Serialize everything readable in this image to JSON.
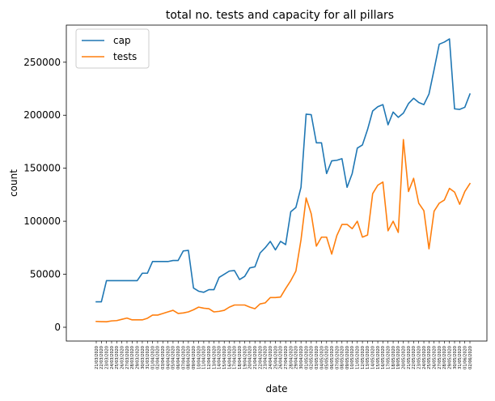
{
  "chart_data": {
    "type": "line",
    "title": "total no. tests and capacity for all pillars",
    "xlabel": "date",
    "ylabel": "count",
    "ylim": [
      -13000,
      285000
    ],
    "yticks": [
      0,
      50000,
      100000,
      150000,
      200000,
      250000
    ],
    "grid": false,
    "legend_position": "top-left",
    "colors": {
      "cap": "#1f77b4",
      "tests": "#ff7f0e"
    },
    "x": [
      "21/03/2020",
      "22/03/2020",
      "23/03/2020",
      "24/03/2020",
      "25/03/2020",
      "26/03/2020",
      "27/03/2020",
      "28/03/2020",
      "29/03/2020",
      "30/03/2020",
      "31/03/2020",
      "01/04/2020",
      "02/04/2020",
      "03/04/2020",
      "04/04/2020",
      "05/04/2020",
      "06/04/2020",
      "07/04/2020",
      "08/04/2020",
      "09/04/2020",
      "10/04/2020",
      "11/04/2020",
      "12/04/2020",
      "13/04/2020",
      "14/04/2020",
      "15/04/2020",
      "16/04/2020",
      "17/04/2020",
      "18/04/2020",
      "19/04/2020",
      "20/04/2020",
      "21/04/2020",
      "22/04/2020",
      "23/04/2020",
      "24/04/2020",
      "25/04/2020",
      "26/04/2020",
      "27/04/2020",
      "28/04/2020",
      "29/04/2020",
      "30/04/2020",
      "01/05/2020",
      "02/05/2020",
      "03/05/2020",
      "04/05/2020",
      "05/05/2020",
      "06/05/2020",
      "07/05/2020",
      "08/05/2020",
      "09/05/2020",
      "10/05/2020",
      "11/05/2020",
      "12/05/2020",
      "13/05/2020",
      "14/05/2020",
      "15/05/2020",
      "16/05/2020",
      "17/05/2020",
      "18/05/2020",
      "19/05/2020",
      "20/05/2020",
      "21/05/2020",
      "22/05/2020",
      "23/05/2020",
      "24/05/2020",
      "25/05/2020",
      "26/05/2020",
      "27/05/2020",
      "28/05/2020",
      "29/05/2020",
      "30/05/2020",
      "31/05/2020",
      "01/06/2020",
      "02/06/2020"
    ],
    "series": [
      {
        "name": "cap",
        "values": [
          24000,
          24000,
          44000,
          44000,
          44000,
          44000,
          44000,
          44000,
          44000,
          51000,
          51000,
          62000,
          62000,
          62000,
          62000,
          63000,
          63000,
          72000,
          72500,
          37000,
          34000,
          33000,
          35500,
          35500,
          47000,
          50000,
          53000,
          53500,
          45000,
          48000,
          56000,
          57000,
          70000,
          75000,
          81000,
          73000,
          81000,
          78000,
          109000,
          113000,
          132000,
          201000,
          200500,
          174000,
          174000,
          145000,
          157000,
          157500,
          159000,
          132000,
          145000,
          169000,
          172000,
          186500,
          204000,
          208000,
          210000,
          191000,
          203000,
          198000,
          202000,
          211000,
          216000,
          212000,
          210000,
          220000,
          243000,
          267000,
          269000,
          272000,
          206000,
          205500,
          207500,
          220000
        ]
      },
      {
        "name": "tests",
        "values": [
          5500,
          5300,
          5200,
          6000,
          6300,
          7500,
          8700,
          7000,
          7000,
          7000,
          8500,
          11500,
          11500,
          13000,
          14500,
          16000,
          13000,
          13500,
          14500,
          16500,
          19000,
          18000,
          17500,
          14500,
          15000,
          16000,
          19000,
          21000,
          21000,
          21000,
          19000,
          17500,
          22000,
          23000,
          28000,
          28000,
          28500,
          36500,
          44000,
          53000,
          82500,
          122000,
          107000,
          76500,
          85000,
          85000,
          69000,
          86500,
          97000,
          97000,
          93000,
          100000,
          85000,
          87000,
          126000,
          134000,
          137000,
          91000,
          100000,
          89500,
          177000,
          128000,
          140500,
          117000,
          110000,
          74000,
          109500,
          117000,
          120000,
          131000,
          127500,
          116000,
          128000,
          135500
        ]
      }
    ]
  }
}
